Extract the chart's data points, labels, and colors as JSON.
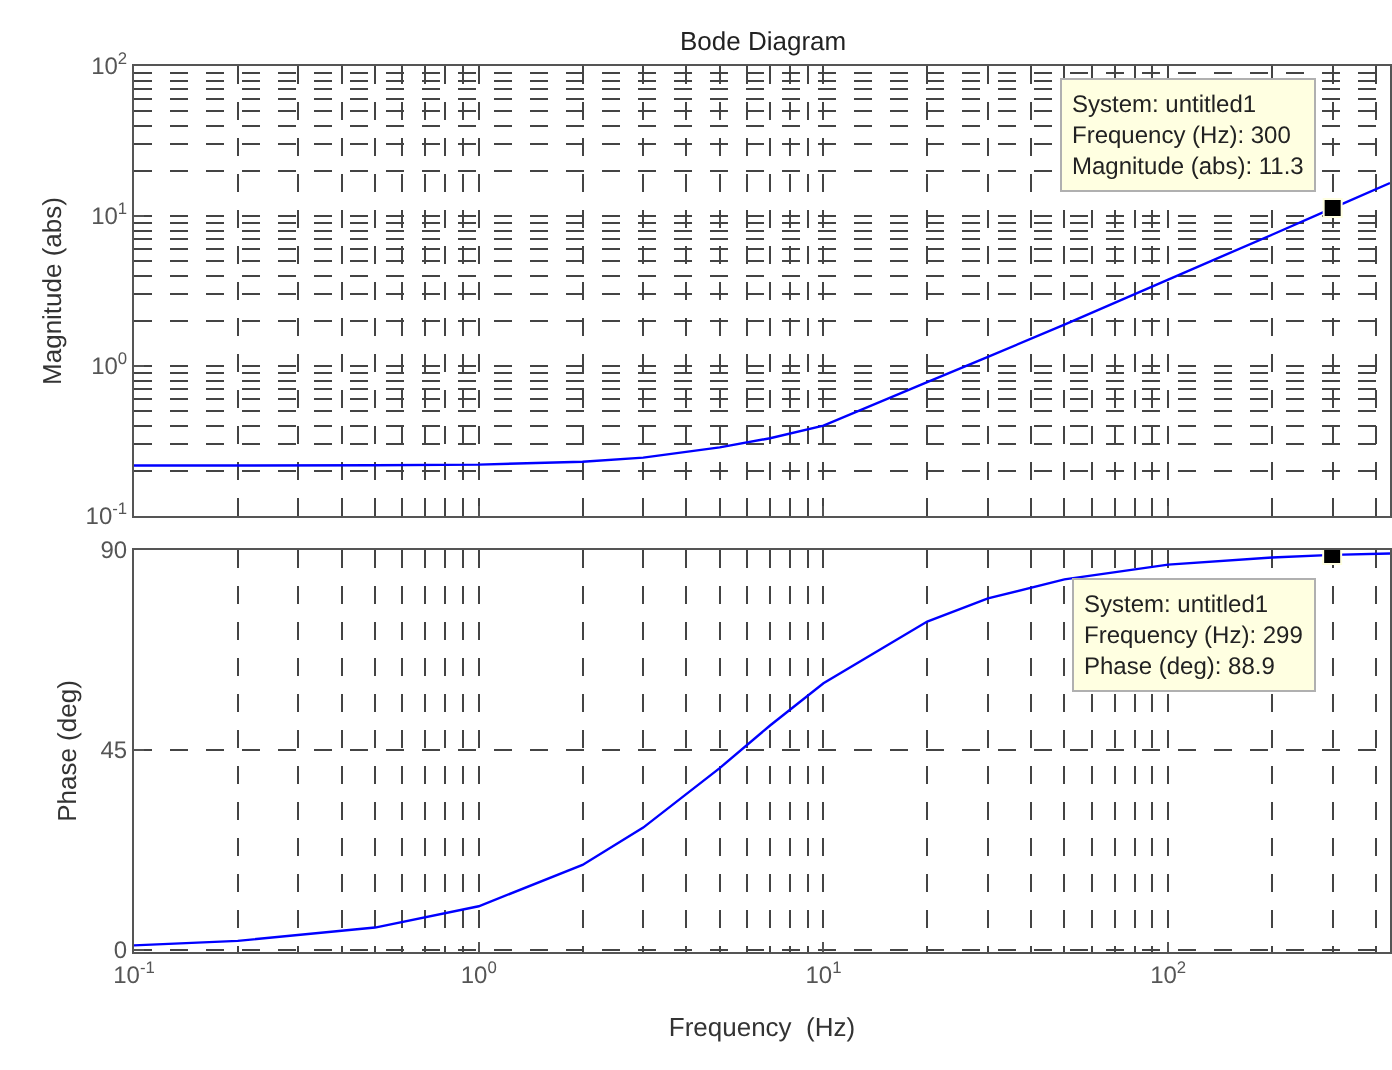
{
  "chart_data": [
    {
      "type": "line",
      "title": "Bode Diagram",
      "ylabel": "Magnitude (abs)",
      "log": "xy",
      "grid": true,
      "tick_labels": "y",
      "x": [
        0.1,
        0.2,
        0.5,
        1,
        2,
        3,
        5,
        7,
        10,
        20,
        30,
        50,
        100,
        200,
        300,
        440
      ],
      "series": [
        {
          "color": "#0000ff",
          "values": [
            0.217,
            0.217,
            0.218,
            0.22,
            0.23,
            0.245,
            0.287,
            0.33,
            0.4,
            0.78,
            1.15,
            1.89,
            3.77,
            7.5,
            11.3,
            16.6
          ]
        }
      ],
      "xlim": [
        0.1,
        440
      ],
      "xticks": [
        {
          "value": 0.1,
          "label": "10$^{-1}$"
        },
        {
          "value": 1,
          "label": "10$^{0}$"
        },
        {
          "value": 10,
          "label": "10$^{1}$"
        },
        {
          "value": 100,
          "label": "10$^{2}$"
        }
      ],
      "ylim": [
        0.1,
        100
      ],
      "yticks": [
        {
          "value": 0.1,
          "label": "10$^{-1}$"
        },
        {
          "value": 1,
          "label": "10$^{0}$"
        },
        {
          "value": 10,
          "label": "10$^{1}$"
        },
        {
          "value": 100,
          "label": "10$^{2}$"
        }
      ],
      "annotations": [
        {
          "text": "System: untitled1\nFrequency (Hz): 300\nMagnitude (abs): 11.3",
          "x": 300,
          "y": 11.3
        }
      ]
    },
    {
      "type": "line",
      "xlabel": "Frequency  (Hz)",
      "ylabel": "Phase (deg)",
      "log": "x",
      "grid": true,
      "x": [
        0.1,
        0.2,
        0.5,
        1,
        2,
        3,
        5,
        7,
        10,
        20,
        30,
        50,
        100,
        200,
        300,
        440
      ],
      "series": [
        {
          "color": "#0000ff",
          "values": [
            1.0,
            2.0,
            5.0,
            9.8,
            19.1,
            27.5,
            40.9,
            50.5,
            60.0,
            73.9,
            79.1,
            83.4,
            86.7,
            88.3,
            88.9,
            89.2
          ]
        }
      ],
      "xlim": [
        0.1,
        440
      ],
      "xticks": [
        {
          "value": 0.1,
          "label": "10$^{-1}$"
        },
        {
          "value": 1,
          "label": "10$^{0}$"
        },
        {
          "value": 10,
          "label": "10$^{1}$"
        },
        {
          "value": 100,
          "label": "10$^{2}$"
        }
      ],
      "ylim": [
        -0.5,
        90
      ],
      "yticks": [
        0,
        45,
        90
      ],
      "annotations": [
        {
          "text": "System: untitled1\nFrequency (Hz): 299\nPhase (deg): 88.9",
          "x": 299,
          "y": 88.9
        }
      ]
    }
  ]
}
